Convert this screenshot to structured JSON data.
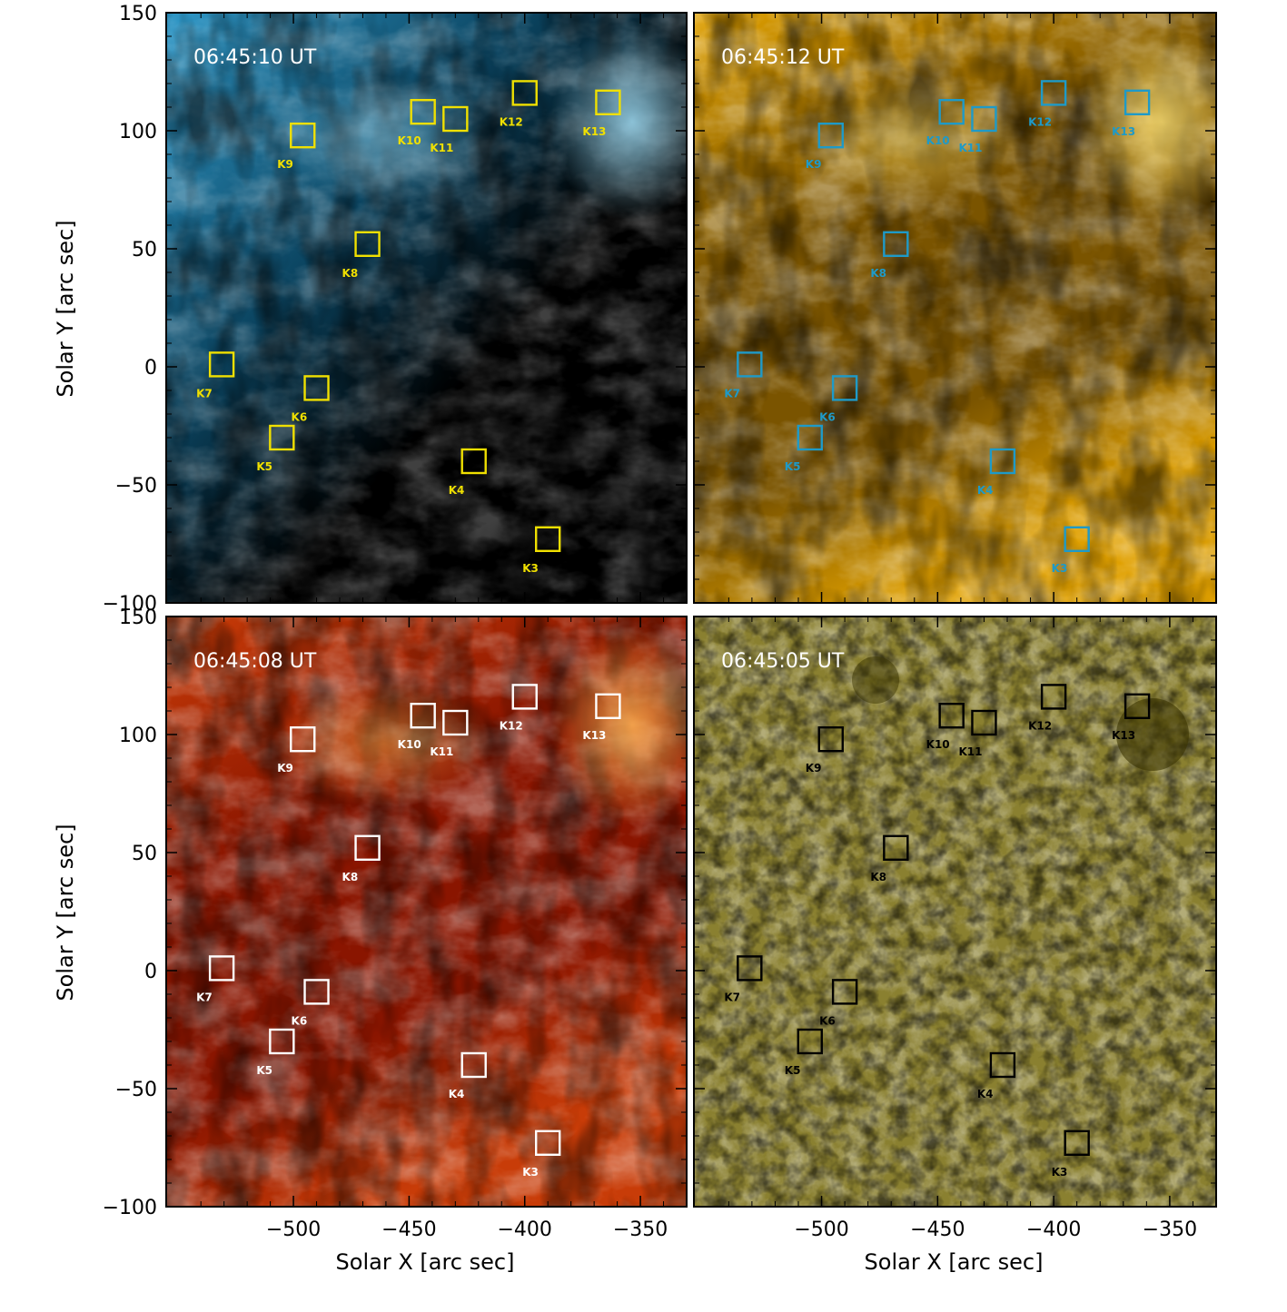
{
  "figure": {
    "y_axis_label": "Solar Y [arc sec]",
    "x_axis_label": "Solar X [arc sec]",
    "x_range": [
      -555,
      -330
    ],
    "y_range": [
      -100,
      150
    ],
    "x_ticks": [
      -500,
      -450,
      -400,
      -350
    ],
    "y_ticks": [
      -100,
      -50,
      0,
      50,
      100,
      150
    ],
    "x_tick_labels": [
      "−500",
      "−450",
      "−400",
      "−350"
    ],
    "y_tick_labels": [
      "−100",
      "−50",
      "0",
      "50",
      "100",
      "150"
    ]
  },
  "panels": [
    {
      "id": "top-left",
      "timestamp": "06:45:10 UT",
      "box_color": "#f0e000",
      "bg_colors": [
        "#000000",
        "#0b4460",
        "#2f98c8",
        "#9fdcf4"
      ],
      "bright_side": "upper-left"
    },
    {
      "id": "top-right",
      "timestamp": "06:45:12 UT",
      "box_color": "#1e9ac8",
      "bg_colors": [
        "#1e1200",
        "#7a5400",
        "#e0a000",
        "#ffe070"
      ],
      "bright_side": "top"
    },
    {
      "id": "bottom-left",
      "timestamp": "06:45:08 UT",
      "box_color": "#ffffff",
      "bg_colors": [
        "#3a0000",
        "#8a1500",
        "#c83c08",
        "#ffb050"
      ],
      "bright_side": "top"
    },
    {
      "id": "bottom-right",
      "timestamp": "06:45:05 UT",
      "box_color": "#000000",
      "bg_colors": [
        "#4a4400",
        "#736a10",
        "#8a8030",
        "#bdb888"
      ],
      "bright_side": "none"
    }
  ],
  "kernels": [
    {
      "name": "K3",
      "x": -390,
      "y": -73
    },
    {
      "name": "K4",
      "x": -422,
      "y": -40
    },
    {
      "name": "K5",
      "x": -505,
      "y": -30
    },
    {
      "name": "K6",
      "x": -490,
      "y": -9
    },
    {
      "name": "K7",
      "x": -531,
      "y": 1
    },
    {
      "name": "K8",
      "x": -468,
      "y": 52
    },
    {
      "name": "K9",
      "x": -496,
      "y": 98
    },
    {
      "name": "K10",
      "x": -444,
      "y": 108
    },
    {
      "name": "K11",
      "x": -430,
      "y": 105
    },
    {
      "name": "K12",
      "x": -400,
      "y": 116
    },
    {
      "name": "K13",
      "x": -364,
      "y": 112
    }
  ]
}
